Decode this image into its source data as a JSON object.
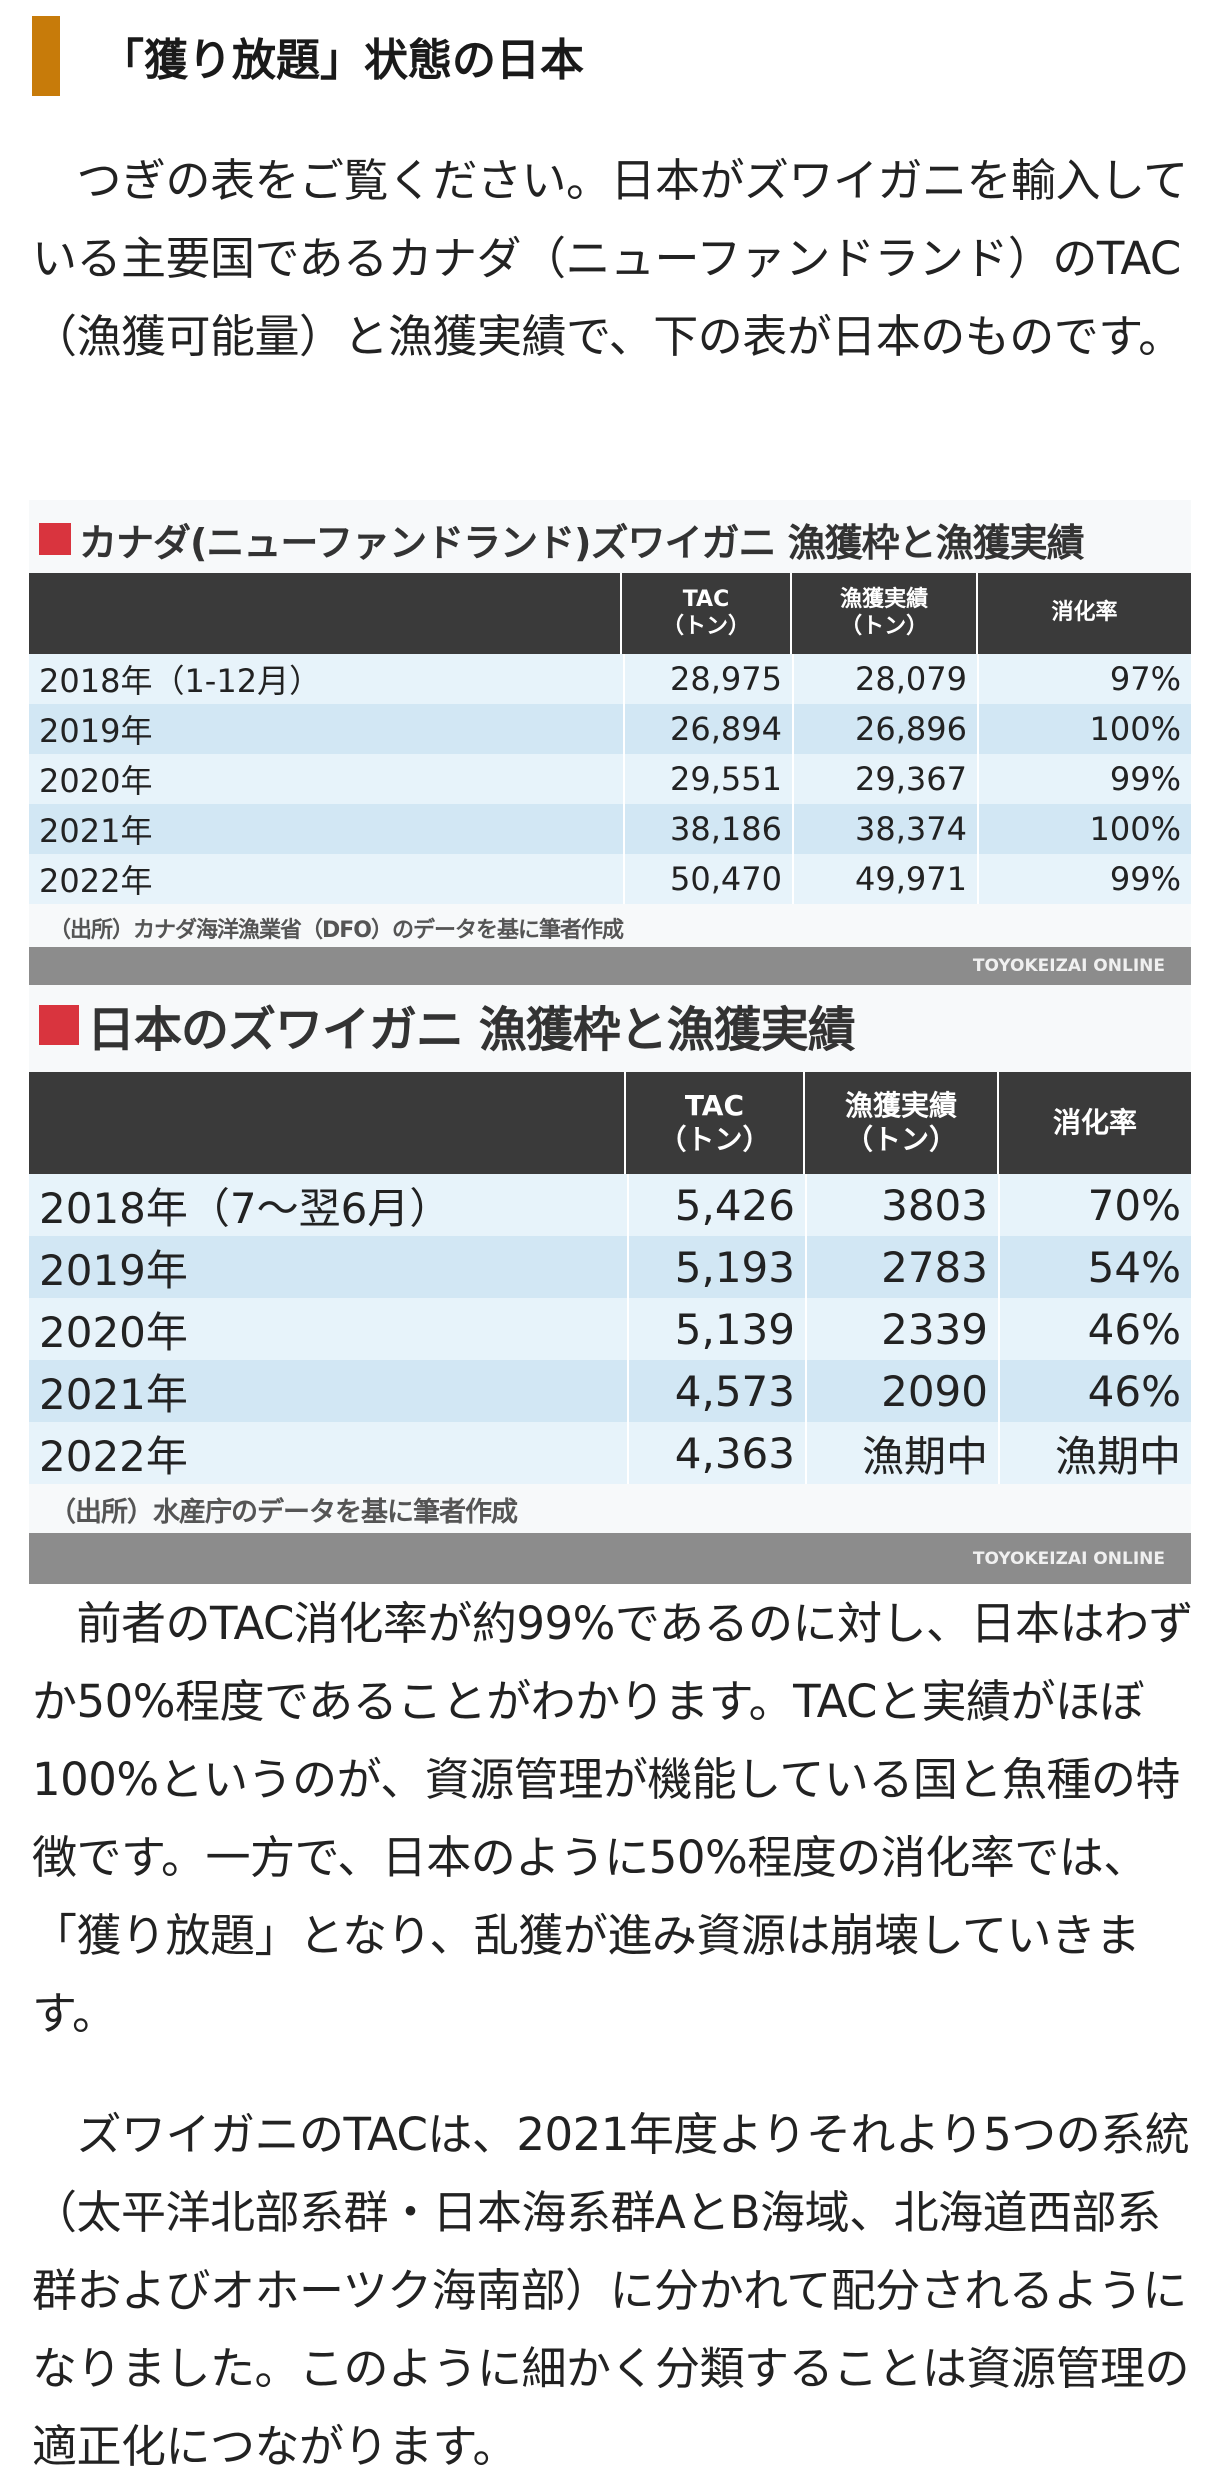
{
  "heading": "「獲り放題」状態の日本",
  "paragraphs": [
    "　つぎの表をご覧ください。日本がズワイガニを輸入している主要国であるカナダ（ニューファンドランド）のTAC（漁獲可能量）と漁獲実績で、下の表が日本のものです。",
    "　前者のTAC消化率が約99%であるのに対し、日本はわずか50%程度であることがわかります。TACと実績がほぼ100%というのが、資源管理が機能している国と魚種の特徴です。一方で、日本のように50%程度の消化率では、「獲り放題」となり、乱獲が進み資源は崩壊していきます。",
    "　ズワイガニのTACは、2021年度よりそれより5つの系統（太平洋北部系群・日本海系群AとB海域、北海道西部系群およびオホーツク海南部）に分かれて配分されるようになりました。このように細かく分類することは資源管理の適正化につながります。"
  ],
  "tables": [
    {
      "title": "カナダ(ニューファンドランド)ズワイガニ 漁獲枠と漁獲実績",
      "headers": [
        "",
        "TAC\n（トン）",
        "漁獲実績\n（トン）",
        "消化率"
      ],
      "rows": [
        [
          "2018年（1-12月）",
          "28,975",
          "28,079",
          "97%"
        ],
        [
          "2019年",
          "26,894",
          "26,896",
          "100%"
        ],
        [
          "2020年",
          "29,551",
          "29,367",
          "99%"
        ],
        [
          "2021年",
          "38,186",
          "38,374",
          "100%"
        ],
        [
          "2022年",
          "50,470",
          "49,971",
          "99%"
        ]
      ],
      "source": "（出所）カナダ海洋漁業省（DFO）のデータを基に筆者作成",
      "credit": "TOYOKEIZAI ONLINE"
    },
    {
      "title": "日本のズワイガニ 漁獲枠と漁獲実績",
      "headers": [
        "",
        "TAC\n（トン）",
        "漁獲実績\n（トン）",
        "消化率"
      ],
      "rows": [
        [
          "2018年（7～翌6月）",
          "5,426",
          "3803",
          "70%"
        ],
        [
          "2019年",
          "5,193",
          "2783",
          "54%"
        ],
        [
          "2020年",
          "5,139",
          "2339",
          "46%"
        ],
        [
          "2021年",
          "4,573",
          "2090",
          "46%"
        ],
        [
          "2022年",
          "4,363",
          "漁期中",
          "漁期中"
        ]
      ],
      "source": "（出所）水産庁のデータを基に筆者作成",
      "credit": "TOYOKEIZAI ONLINE"
    }
  ]
}
